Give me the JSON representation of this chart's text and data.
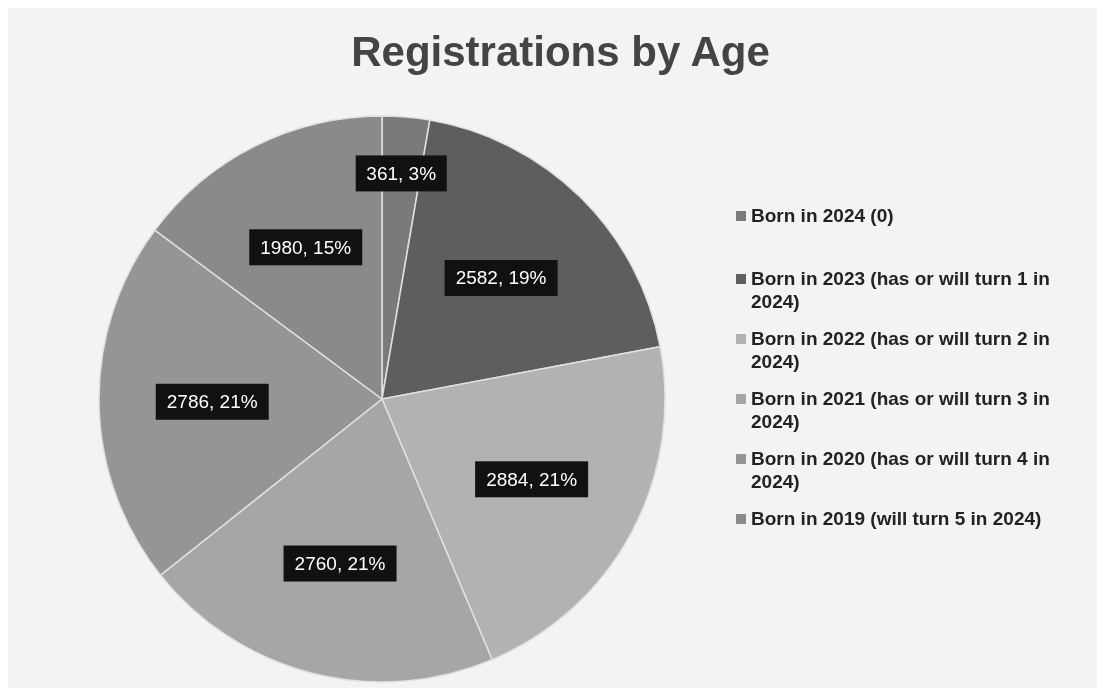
{
  "chart_data": {
    "type": "pie",
    "title": "Registrations by Age",
    "categories": [
      "Born in 2024 (0)",
      "Born in 2023 (has or will turn 1 in 2024)",
      "Born in 2022 (has or will turn 2 in 2024)",
      "Born in 2021 (has or will turn 3 in 2024)",
      "Born in 2020 (has or will turn 4 in 2024)",
      "Born in 2019 (will turn 5 in 2024)"
    ],
    "values": [
      361,
      2582,
      2884,
      2760,
      2786,
      1980
    ],
    "colors": [
      "#7a7a7a",
      "#5e5e5e",
      "#b2b2b2",
      "#a6a6a6",
      "#959595",
      "#8a8a8a"
    ],
    "value_labels": [
      "361, 3%",
      "2582, 19%",
      "2884, 21%",
      "2760, 21%",
      "2786, 21%",
      "1980, 15%"
    ],
    "legend": "right"
  }
}
